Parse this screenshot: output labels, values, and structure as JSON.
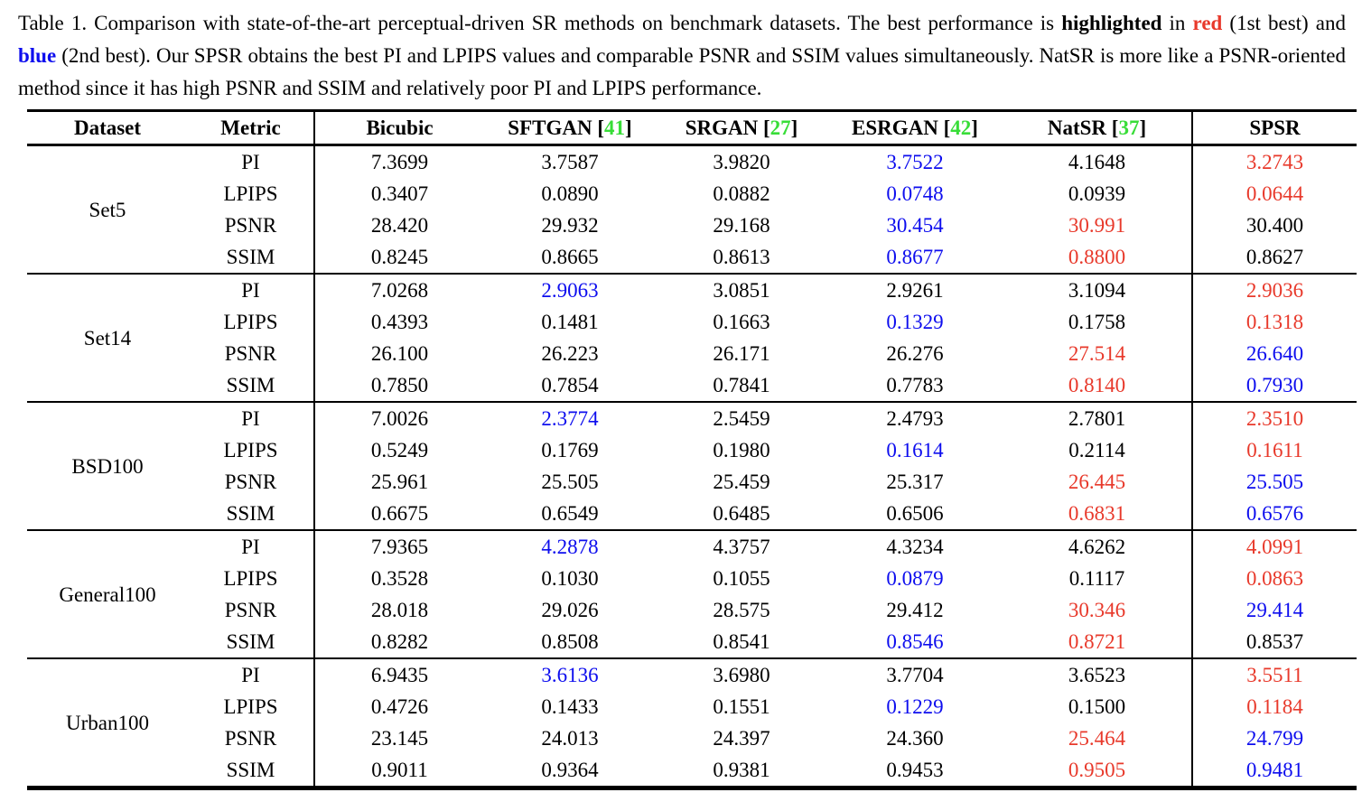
{
  "colors": {
    "first_best_red": "#e8392b",
    "second_best_blue": "#0d0dee",
    "citation_green": "#38dd38",
    "text": "#000000",
    "background": "#ffffff"
  },
  "caption": {
    "segments": [
      {
        "text": "Table 1. Comparison with state-of-the-art perceptual-driven SR methods on benchmark datasets. The best performance is ",
        "style": "normal"
      },
      {
        "text": "highlighted",
        "style": "bold"
      },
      {
        "text": " in ",
        "style": "normal"
      },
      {
        "text": "red",
        "style": "bold-red"
      },
      {
        "text": " (1st best) and ",
        "style": "normal"
      },
      {
        "text": "blue",
        "style": "bold-blue"
      },
      {
        "text": " (2nd best). Our SPSR obtains the best PI and LPIPS values and comparable PSNR and SSIM values simultaneously. NatSR is more like a PSNR-oriented method since it has high PSNR and SSIM and relatively poor PI and LPIPS performance.",
        "style": "normal"
      }
    ]
  },
  "chart_data": {
    "type": "table",
    "title": "Comparison with state-of-the-art perceptual-driven SR methods on benchmark datasets",
    "columns": [
      "Dataset",
      "Metric",
      "Bicubic",
      "SFTGAN [41]",
      "SRGAN [27]",
      "ESRGAN [42]",
      "NatSR [37]",
      "SPSR"
    ],
    "legend": {
      "red": "1st best",
      "blue": "2nd best"
    }
  },
  "table": {
    "header": [
      {
        "label": "Dataset",
        "cite": null
      },
      {
        "label": "Metric",
        "cite": null
      },
      {
        "label": "Bicubic",
        "cite": null
      },
      {
        "label": "SFTGAN",
        "cite": "41"
      },
      {
        "label": "SRGAN",
        "cite": "27"
      },
      {
        "label": "ESRGAN",
        "cite": "42"
      },
      {
        "label": "NatSR",
        "cite": "37"
      },
      {
        "label": "SPSR",
        "cite": null
      }
    ],
    "groups": [
      {
        "dataset": "Set5",
        "rows": [
          {
            "metric": "PI",
            "values": [
              {
                "v": "7.3699"
              },
              {
                "v": "3.7587"
              },
              {
                "v": "3.9820"
              },
              {
                "v": "3.7522",
                "rank": 2
              },
              {
                "v": "4.1648"
              },
              {
                "v": "3.2743",
                "rank": 1
              }
            ]
          },
          {
            "metric": "LPIPS",
            "values": [
              {
                "v": "0.3407"
              },
              {
                "v": "0.0890"
              },
              {
                "v": "0.0882"
              },
              {
                "v": "0.0748",
                "rank": 2
              },
              {
                "v": "0.0939"
              },
              {
                "v": "0.0644",
                "rank": 1
              }
            ]
          },
          {
            "metric": "PSNR",
            "values": [
              {
                "v": "28.420"
              },
              {
                "v": "29.932"
              },
              {
                "v": "29.168"
              },
              {
                "v": "30.454",
                "rank": 2
              },
              {
                "v": "30.991",
                "rank": 1
              },
              {
                "v": "30.400"
              }
            ]
          },
          {
            "metric": "SSIM",
            "values": [
              {
                "v": "0.8245"
              },
              {
                "v": "0.8665"
              },
              {
                "v": "0.8613"
              },
              {
                "v": "0.8677",
                "rank": 2
              },
              {
                "v": "0.8800",
                "rank": 1
              },
              {
                "v": "0.8627"
              }
            ]
          }
        ]
      },
      {
        "dataset": "Set14",
        "rows": [
          {
            "metric": "PI",
            "values": [
              {
                "v": "7.0268"
              },
              {
                "v": "2.9063",
                "rank": 2
              },
              {
                "v": "3.0851"
              },
              {
                "v": "2.9261"
              },
              {
                "v": "3.1094"
              },
              {
                "v": "2.9036",
                "rank": 1
              }
            ]
          },
          {
            "metric": "LPIPS",
            "values": [
              {
                "v": "0.4393"
              },
              {
                "v": "0.1481"
              },
              {
                "v": "0.1663"
              },
              {
                "v": "0.1329",
                "rank": 2
              },
              {
                "v": "0.1758"
              },
              {
                "v": "0.1318",
                "rank": 1
              }
            ]
          },
          {
            "metric": "PSNR",
            "values": [
              {
                "v": "26.100"
              },
              {
                "v": "26.223"
              },
              {
                "v": "26.171"
              },
              {
                "v": "26.276"
              },
              {
                "v": "27.514",
                "rank": 1
              },
              {
                "v": "26.640",
                "rank": 2
              }
            ]
          },
          {
            "metric": "SSIM",
            "values": [
              {
                "v": "0.7850"
              },
              {
                "v": "0.7854"
              },
              {
                "v": "0.7841"
              },
              {
                "v": "0.7783"
              },
              {
                "v": "0.8140",
                "rank": 1
              },
              {
                "v": "0.7930",
                "rank": 2
              }
            ]
          }
        ]
      },
      {
        "dataset": "BSD100",
        "rows": [
          {
            "metric": "PI",
            "values": [
              {
                "v": "7.0026"
              },
              {
                "v": "2.3774",
                "rank": 2
              },
              {
                "v": "2.5459"
              },
              {
                "v": "2.4793"
              },
              {
                "v": "2.7801"
              },
              {
                "v": "2.3510",
                "rank": 1
              }
            ]
          },
          {
            "metric": "LPIPS",
            "values": [
              {
                "v": "0.5249"
              },
              {
                "v": "0.1769"
              },
              {
                "v": "0.1980"
              },
              {
                "v": "0.1614",
                "rank": 2
              },
              {
                "v": "0.2114"
              },
              {
                "v": "0.1611",
                "rank": 1
              }
            ]
          },
          {
            "metric": "PSNR",
            "values": [
              {
                "v": "25.961"
              },
              {
                "v": "25.505"
              },
              {
                "v": "25.459"
              },
              {
                "v": "25.317"
              },
              {
                "v": "26.445",
                "rank": 1
              },
              {
                "v": "25.505",
                "rank": 2
              }
            ]
          },
          {
            "metric": "SSIM",
            "values": [
              {
                "v": "0.6675"
              },
              {
                "v": "0.6549"
              },
              {
                "v": "0.6485"
              },
              {
                "v": "0.6506"
              },
              {
                "v": "0.6831",
                "rank": 1
              },
              {
                "v": "0.6576",
                "rank": 2
              }
            ]
          }
        ]
      },
      {
        "dataset": "General100",
        "rows": [
          {
            "metric": "PI",
            "values": [
              {
                "v": "7.9365"
              },
              {
                "v": "4.2878",
                "rank": 2
              },
              {
                "v": "4.3757"
              },
              {
                "v": "4.3234"
              },
              {
                "v": "4.6262"
              },
              {
                "v": "4.0991",
                "rank": 1
              }
            ]
          },
          {
            "metric": "LPIPS",
            "values": [
              {
                "v": "0.3528"
              },
              {
                "v": "0.1030"
              },
              {
                "v": "0.1055"
              },
              {
                "v": "0.0879",
                "rank": 2
              },
              {
                "v": "0.1117"
              },
              {
                "v": "0.0863",
                "rank": 1
              }
            ]
          },
          {
            "metric": "PSNR",
            "values": [
              {
                "v": "28.018"
              },
              {
                "v": "29.026"
              },
              {
                "v": "28.575"
              },
              {
                "v": "29.412"
              },
              {
                "v": "30.346",
                "rank": 1
              },
              {
                "v": "29.414",
                "rank": 2
              }
            ]
          },
          {
            "metric": "SSIM",
            "values": [
              {
                "v": "0.8282"
              },
              {
                "v": "0.8508"
              },
              {
                "v": "0.8541"
              },
              {
                "v": "0.8546",
                "rank": 2
              },
              {
                "v": "0.8721",
                "rank": 1
              },
              {
                "v": "0.8537"
              }
            ]
          }
        ]
      },
      {
        "dataset": "Urban100",
        "rows": [
          {
            "metric": "PI",
            "values": [
              {
                "v": "6.9435"
              },
              {
                "v": "3.6136",
                "rank": 2
              },
              {
                "v": "3.6980"
              },
              {
                "v": "3.7704"
              },
              {
                "v": "3.6523"
              },
              {
                "v": "3.5511",
                "rank": 1
              }
            ]
          },
          {
            "metric": "LPIPS",
            "values": [
              {
                "v": "0.4726"
              },
              {
                "v": "0.1433"
              },
              {
                "v": "0.1551"
              },
              {
                "v": "0.1229",
                "rank": 2
              },
              {
                "v": "0.1500"
              },
              {
                "v": "0.1184",
                "rank": 1
              }
            ]
          },
          {
            "metric": "PSNR",
            "values": [
              {
                "v": "23.145"
              },
              {
                "v": "24.013"
              },
              {
                "v": "24.397"
              },
              {
                "v": "24.360"
              },
              {
                "v": "25.464",
                "rank": 1
              },
              {
                "v": "24.799",
                "rank": 2
              }
            ]
          },
          {
            "metric": "SSIM",
            "values": [
              {
                "v": "0.9011"
              },
              {
                "v": "0.9364"
              },
              {
                "v": "0.9381"
              },
              {
                "v": "0.9453"
              },
              {
                "v": "0.9505",
                "rank": 1
              },
              {
                "v": "0.9481",
                "rank": 2
              }
            ]
          }
        ]
      }
    ]
  }
}
